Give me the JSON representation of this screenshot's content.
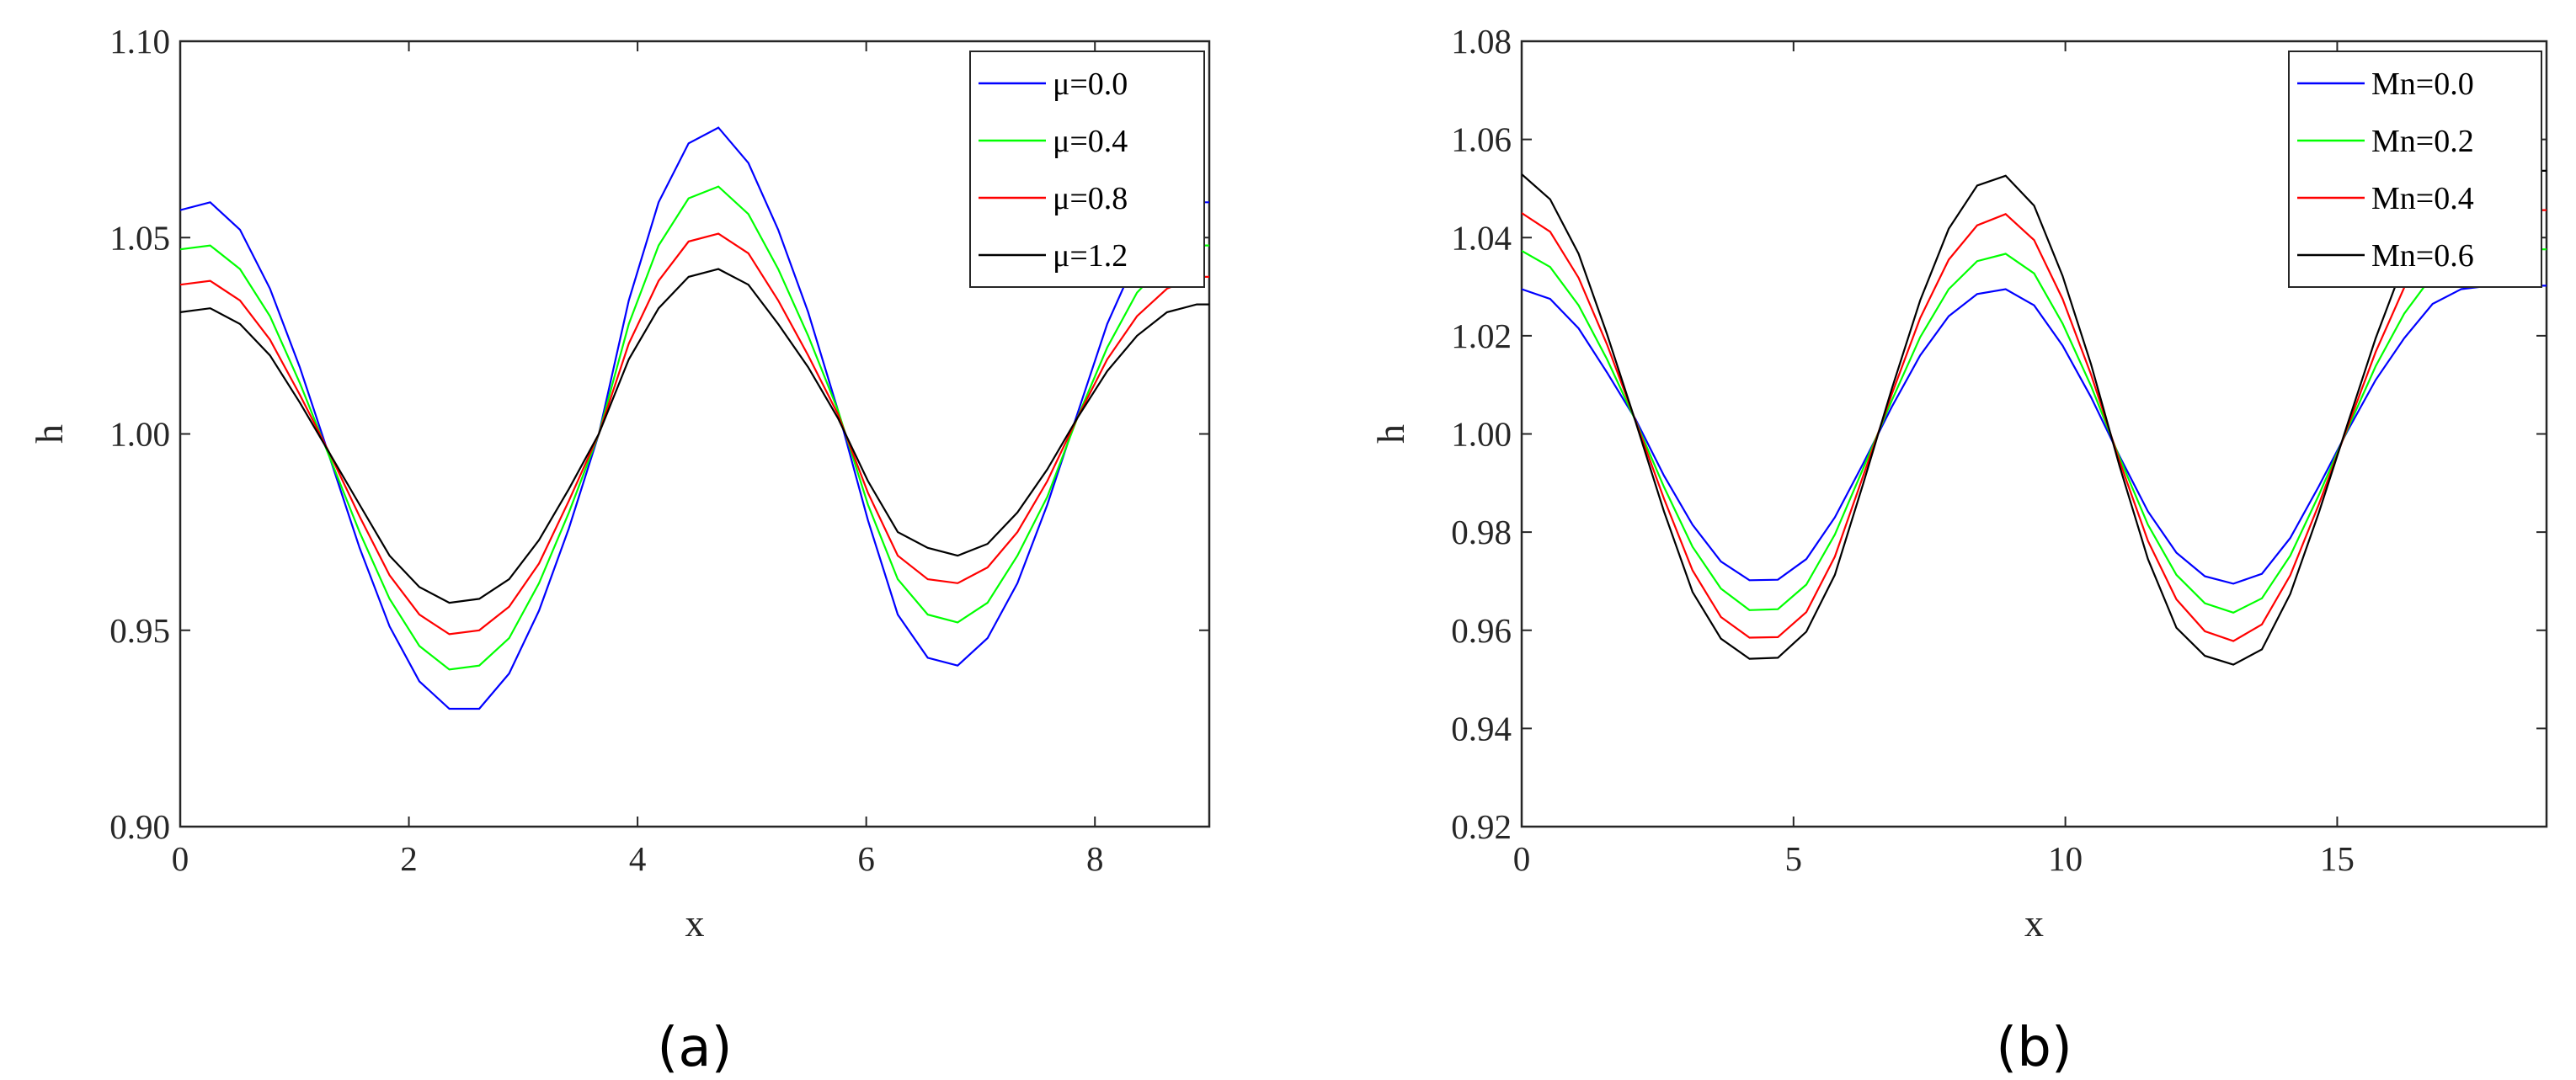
{
  "chart_data": [
    {
      "type": "line",
      "caption": "(a)",
      "xlabel": "x",
      "ylabel": "h",
      "xlim": [
        0,
        9
      ],
      "ylim": [
        0.9,
        1.1
      ],
      "xticks": [
        0,
        2,
        4,
        6,
        8
      ],
      "xtick_labels": [
        "0",
        "2",
        "4",
        "6",
        "8"
      ],
      "yticks": [
        0.9,
        0.95,
        1.0,
        1.05,
        1.1
      ],
      "ytick_labels": [
        "0.90",
        "0.95",
        "1.00",
        "1.05",
        "1.10"
      ],
      "legend_position": "top-right",
      "x": [
        0.0,
        0.262,
        0.523,
        0.785,
        1.046,
        1.308,
        1.569,
        1.831,
        2.092,
        2.354,
        2.615,
        2.877,
        3.138,
        3.4,
        3.661,
        3.923,
        4.184,
        4.446,
        4.707,
        4.969,
        5.23,
        5.492,
        5.753,
        6.015,
        6.276,
        6.538,
        6.799,
        7.061,
        7.322,
        7.584,
        7.845,
        8.107,
        8.368,
        8.63,
        8.891,
        9.0
      ],
      "series": [
        {
          "name": "μ=0.0",
          "color": "#0000ff",
          "values": [
            1.057,
            1.059,
            1.052,
            1.037,
            1.017,
            0.994,
            0.971,
            0.951,
            0.937,
            0.93,
            0.93,
            0.939,
            0.955,
            0.976,
            1.0,
            1.034,
            1.059,
            1.074,
            1.078,
            1.069,
            1.052,
            1.031,
            1.006,
            0.978,
            0.954,
            0.943,
            0.941,
            0.948,
            0.962,
            0.982,
            1.005,
            1.028,
            1.045,
            1.055,
            1.059,
            1.059
          ]
        },
        {
          "name": "μ=0.4",
          "color": "#00ff00",
          "values": [
            1.047,
            1.048,
            1.042,
            1.03,
            1.013,
            0.994,
            0.975,
            0.958,
            0.946,
            0.94,
            0.941,
            0.948,
            0.962,
            0.98,
            1.0,
            1.028,
            1.048,
            1.06,
            1.063,
            1.056,
            1.042,
            1.025,
            1.006,
            0.982,
            0.963,
            0.954,
            0.952,
            0.957,
            0.969,
            0.984,
            1.004,
            1.022,
            1.036,
            1.044,
            1.048,
            1.048
          ]
        },
        {
          "name": "μ=0.8",
          "color": "#ff0000",
          "values": [
            1.038,
            1.039,
            1.034,
            1.024,
            1.01,
            0.995,
            0.979,
            0.964,
            0.954,
            0.949,
            0.95,
            0.956,
            0.967,
            0.983,
            1.0,
            1.023,
            1.039,
            1.049,
            1.051,
            1.046,
            1.034,
            1.02,
            1.005,
            0.985,
            0.969,
            0.963,
            0.962,
            0.966,
            0.975,
            0.988,
            1.004,
            1.019,
            1.03,
            1.037,
            1.04,
            1.04
          ]
        },
        {
          "name": "μ=1.2",
          "color": "#000000",
          "values": [
            1.031,
            1.032,
            1.028,
            1.02,
            1.008,
            0.995,
            0.982,
            0.969,
            0.961,
            0.957,
            0.958,
            0.963,
            0.973,
            0.986,
            1.0,
            1.019,
            1.032,
            1.04,
            1.042,
            1.038,
            1.028,
            1.017,
            1.004,
            0.988,
            0.975,
            0.971,
            0.969,
            0.972,
            0.98,
            0.991,
            1.004,
            1.016,
            1.025,
            1.031,
            1.033,
            1.033
          ]
        }
      ]
    },
    {
      "type": "line",
      "caption": "(b)",
      "xlabel": "x",
      "ylabel": "h",
      "xlim": [
        0,
        18.85
      ],
      "ylim": [
        0.92,
        1.08
      ],
      "xticks": [
        0,
        5,
        10,
        15
      ],
      "xtick_labels": [
        "0",
        "5",
        "10",
        "15"
      ],
      "yticks": [
        0.92,
        0.94,
        0.96,
        0.98,
        1.0,
        1.02,
        1.04,
        1.06,
        1.08
      ],
      "ytick_labels": [
        "0.92",
        "0.94",
        "0.96",
        "0.98",
        "1.00",
        "1.02",
        "1.04",
        "1.06",
        "1.08"
      ],
      "legend_position": "top-right",
      "x": [
        0.0,
        0.524,
        1.047,
        1.571,
        2.094,
        2.618,
        3.142,
        3.665,
        4.189,
        4.712,
        5.236,
        5.76,
        6.283,
        6.807,
        7.33,
        7.854,
        8.378,
        8.901,
        9.425,
        9.948,
        10.472,
        10.996,
        11.519,
        12.043,
        12.566,
        13.09,
        13.614,
        14.137,
        14.661,
        15.184,
        15.708,
        16.232,
        16.755,
        17.279,
        17.802,
        18.326,
        18.85
      ],
      "series": [
        {
          "name": "Mn=0.0",
          "color": "#0000ff",
          "values": [
            1.0295,
            1.0275,
            1.0215,
            1.0125,
            1.003,
            0.9915,
            0.9815,
            0.974,
            0.9702,
            0.9703,
            0.9745,
            0.983,
            0.994,
            1.0055,
            1.016,
            1.024,
            1.0285,
            1.0295,
            1.0262,
            1.018,
            1.0075,
            0.9955,
            0.9842,
            0.9758,
            0.971,
            0.9695,
            0.9715,
            0.9788,
            0.9893,
            1.0005,
            1.011,
            1.0195,
            1.0265,
            1.0295,
            1.0302,
            1.0302,
            1.0302
          ]
        },
        {
          "name": "Mn=0.2",
          "color": "#00ff00",
          "values": [
            1.0373,
            1.034,
            1.0262,
            1.0152,
            1.0027,
            0.9892,
            0.977,
            0.9685,
            0.9641,
            0.9643,
            0.9693,
            0.9795,
            0.993,
            1.0068,
            1.0197,
            1.0295,
            1.0352,
            1.0367,
            1.0327,
            1.0225,
            1.0098,
            0.9952,
            0.9815,
            0.9713,
            0.9655,
            0.9636,
            0.9665,
            0.9752,
            0.9875,
            1.0008,
            1.0138,
            1.0245,
            1.0323,
            1.0366,
            1.0376,
            1.0376,
            1.0376
          ]
        },
        {
          "name": "Mn=0.4",
          "color": "#ff0000",
          "values": [
            1.045,
            1.0412,
            1.0318,
            1.0182,
            1.0027,
            0.9868,
            0.9722,
            0.9627,
            0.9585,
            0.9586,
            0.9637,
            0.975,
            0.9915,
            1.0081,
            1.0236,
            1.0355,
            1.0425,
            1.0448,
            1.0395,
            1.0275,
            1.0121,
            0.9945,
            0.9782,
            0.9663,
            0.9598,
            0.9578,
            0.9612,
            0.9712,
            0.9856,
            1.0012,
            1.0167,
            1.0298,
            1.0392,
            1.0445,
            1.0456,
            1.0456,
            1.0456
          ]
        },
        {
          "name": "Mn=0.6",
          "color": "#000000",
          "values": [
            1.0529,
            1.0478,
            1.0367,
            1.0203,
            1.0025,
            0.9842,
            0.9678,
            0.9583,
            0.9542,
            0.9544,
            0.9597,
            0.9713,
            0.9899,
            1.0092,
            1.0272,
            1.0418,
            1.0506,
            1.0526,
            1.0465,
            1.0322,
            1.0142,
            0.9935,
            0.9745,
            0.9605,
            0.9548,
            0.953,
            0.9561,
            0.9674,
            0.9839,
            1.0018,
            1.0195,
            1.0349,
            1.0462,
            1.0524,
            1.0536,
            1.0536,
            1.0536
          ]
        }
      ]
    }
  ]
}
